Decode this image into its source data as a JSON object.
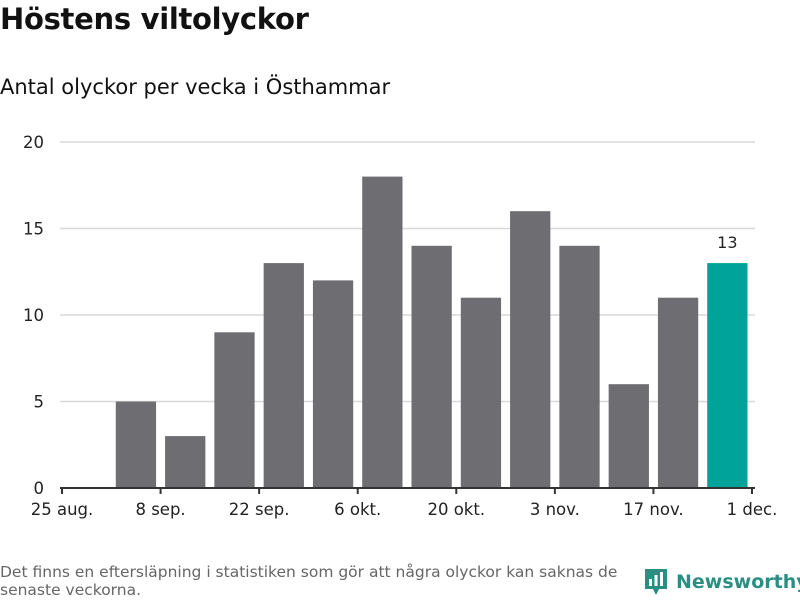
{
  "title": "Höstens viltolyckor",
  "subtitle": "Antal olyckor per vecka i Östhammar",
  "footnote": "Det finns en eftersläpning i statistiken som gör att några olyckor kan saknas de senaste veckorna.",
  "brand": {
    "name": "Newsworthy",
    "icon": "newsworthy-logo-icon"
  },
  "colors": {
    "bar": "#6e6d72",
    "highlight": "#00a39a",
    "grid": "#d9d9d9",
    "axis": "#333333",
    "brand": "#2a8f83"
  },
  "chart_data": {
    "type": "bar",
    "title": "Höstens viltolyckor",
    "subtitle": "Antal olyckor per vecka i Östhammar",
    "xlabel": "",
    "ylabel": "",
    "ylim": [
      0,
      20
    ],
    "yticks": [
      0,
      5,
      10,
      15,
      20
    ],
    "xticks": [
      "25 aug.",
      "8 sep.",
      "22 sep.",
      "6 okt.",
      "20 okt.",
      "3 nov.",
      "17 nov.",
      "1 dec."
    ],
    "values": [
      5,
      3,
      9,
      13,
      12,
      18,
      14,
      11,
      16,
      14,
      6,
      11,
      13
    ],
    "highlight_index": 12,
    "highlight_label": "13",
    "grid": true
  }
}
